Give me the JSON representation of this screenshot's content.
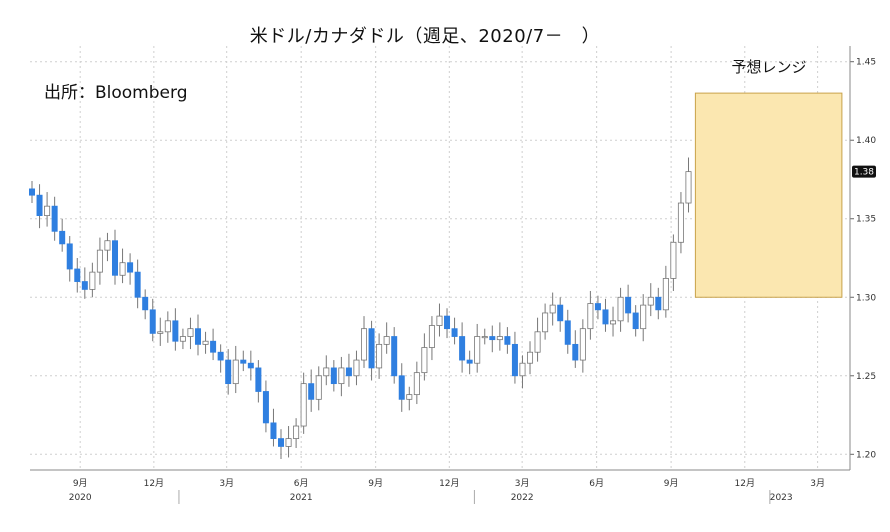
{
  "title": "米ドル/カナダドル（週足、2020/7－　）",
  "source": "出所：Bloomberg",
  "forecast_label": "予想レンジ",
  "colors": {
    "up": "#ffffff",
    "down": "#2f7fe0",
    "wick": "#777777",
    "band": "#fbe7b0",
    "band_border": "#c8a24a",
    "grid": "#cfcfcf"
  },
  "chart_data": {
    "type": "candlestick",
    "title": "米ドル/カナダドル（週足、2020/7－　）",
    "ylim": [
      1.19,
      1.46
    ],
    "xlim": [
      "2020-07-01",
      "2023-04-10"
    ],
    "yticks": [
      1.2,
      1.25,
      1.3,
      1.35,
      1.4,
      1.45
    ],
    "ytick_labels": [
      "1.20",
      "1.25",
      "1.30",
      "1.35",
      "1.40",
      "1.45"
    ],
    "xticks": [
      {
        "date": "2020-09-01",
        "label": "9月"
      },
      {
        "date": "2020-12-01",
        "label": "12月"
      },
      {
        "date": "2021-03-01",
        "label": "3月"
      },
      {
        "date": "2021-06-01",
        "label": "6月"
      },
      {
        "date": "2021-09-01",
        "label": "9月"
      },
      {
        "date": "2021-12-01",
        "label": "12月"
      },
      {
        "date": "2022-03-01",
        "label": "3月"
      },
      {
        "date": "2022-06-01",
        "label": "6月"
      },
      {
        "date": "2022-09-01",
        "label": "9月"
      },
      {
        "date": "2022-12-01",
        "label": "12月"
      },
      {
        "date": "2023-03-01",
        "label": "3月"
      }
    ],
    "year_labels": [
      {
        "date": "2020-09-01",
        "label": "2020"
      },
      {
        "date": "2021-06-01",
        "label": "2021"
      },
      {
        "date": "2022-03-01",
        "label": "2022"
      },
      {
        "date": "2023-01-15",
        "label": "2023"
      }
    ],
    "last_price_label": "1.38",
    "last_price": 1.38,
    "forecast_range": {
      "low": 1.3,
      "high": 1.43,
      "start": "2022-10-01",
      "end": "2023-03-31"
    },
    "grid": true,
    "closes": [
      1.365,
      1.352,
      1.358,
      1.342,
      1.334,
      1.318,
      1.31,
      1.305,
      1.316,
      1.33,
      1.336,
      1.314,
      1.322,
      1.316,
      1.3,
      1.292,
      1.277,
      1.278,
      1.285,
      1.272,
      1.275,
      1.28,
      1.27,
      1.272,
      1.265,
      1.26,
      1.245,
      1.26,
      1.258,
      1.255,
      1.24,
      1.22,
      1.21,
      1.205,
      1.21,
      1.218,
      1.245,
      1.235,
      1.25,
      1.255,
      1.245,
      1.255,
      1.25,
      1.26,
      1.28,
      1.255,
      1.27,
      1.275,
      1.25,
      1.235,
      1.238,
      1.252,
      1.268,
      1.282,
      1.288,
      1.28,
      1.275,
      1.26,
      1.258,
      1.275,
      1.275,
      1.273,
      1.275,
      1.27,
      1.25,
      1.258,
      1.265,
      1.278,
      1.29,
      1.295,
      1.285,
      1.27,
      1.26,
      1.28,
      1.296,
      1.292,
      1.283,
      1.285,
      1.3,
      1.29,
      1.28,
      1.295,
      1.3,
      1.292,
      1.312,
      1.335,
      1.36,
      1.38
    ]
  }
}
